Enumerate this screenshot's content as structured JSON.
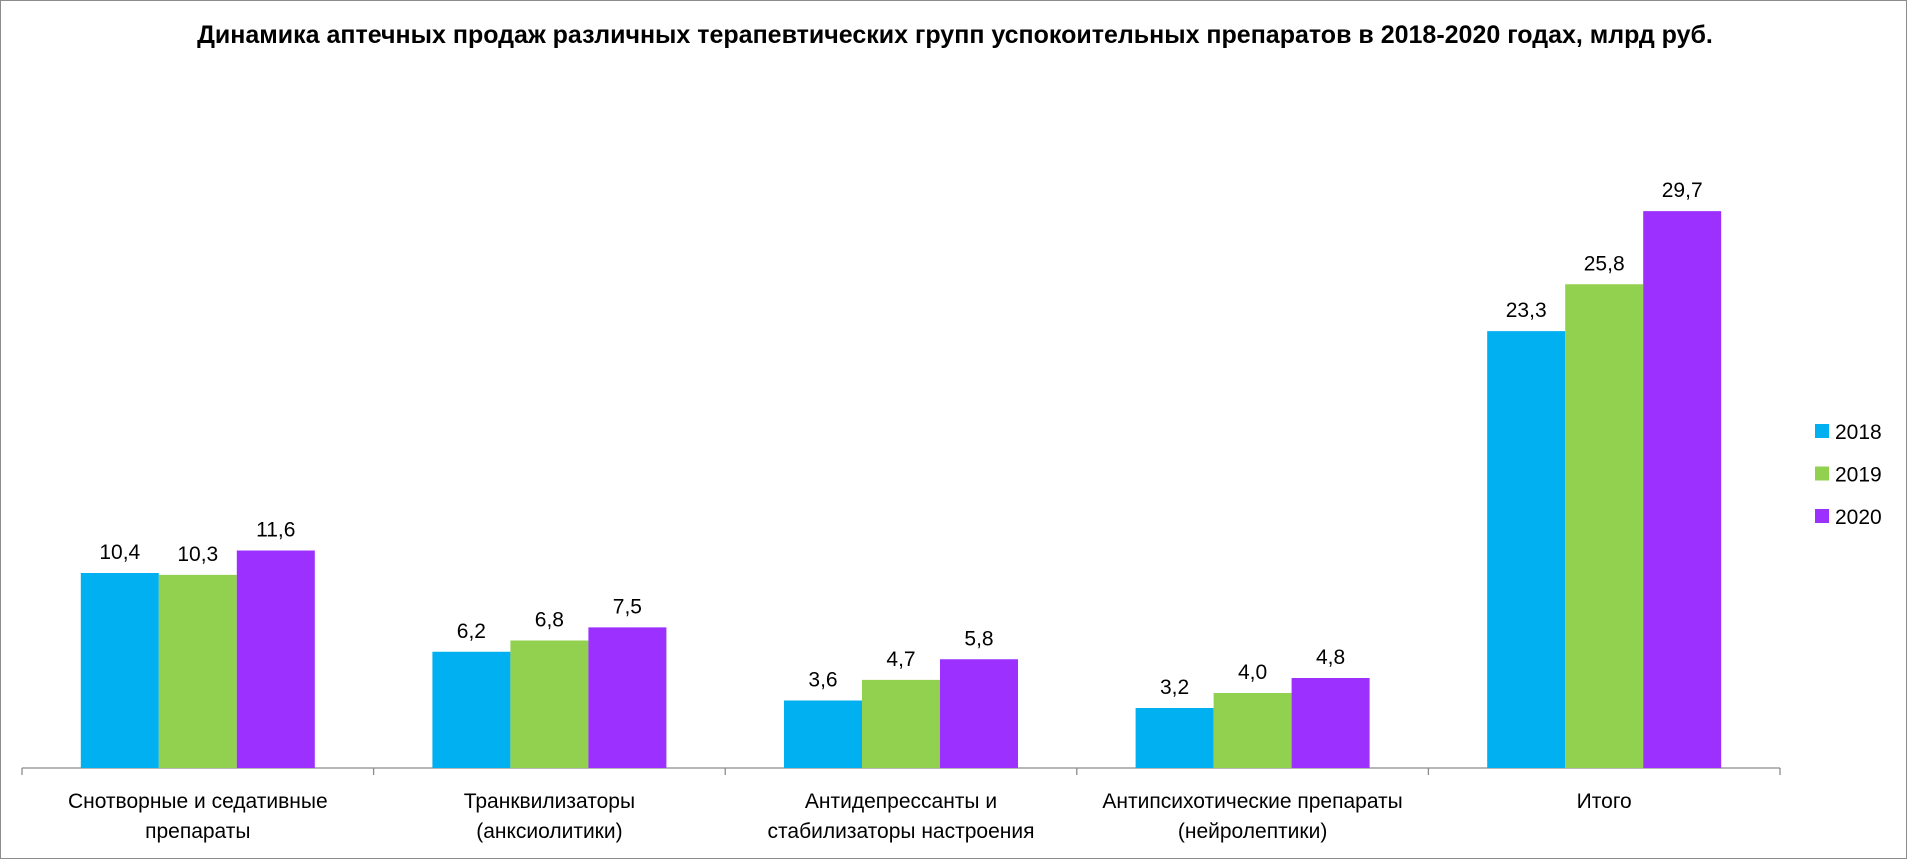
{
  "chart_data": {
    "type": "bar",
    "title": "Динамика аптечных продаж различных терапевтических групп успокоительных препаратов в 2018-2020 годах, млрд руб.",
    "categories": [
      [
        "Снотворные и седативные",
        "препараты"
      ],
      [
        "Транквилизаторы",
        "(анксиолитики)"
      ],
      [
        "Антидепрессанты и",
        "стабилизаторы настроения"
      ],
      [
        "Антипсихотические препараты",
        "(нейролептики)"
      ],
      [
        "Итого"
      ]
    ],
    "series": [
      {
        "name": "2018",
        "color": "#00b0f0",
        "values": [
          10.4,
          6.2,
          3.6,
          3.2,
          23.3
        ],
        "labels": [
          "10,4",
          "6,2",
          "3,6",
          "3,2",
          "23,3"
        ]
      },
      {
        "name": "2019",
        "color": "#92d050",
        "values": [
          10.3,
          6.8,
          4.7,
          4.0,
          25.8
        ],
        "labels": [
          "10,3",
          "6,8",
          "4,7",
          "4,0",
          "25,8"
        ]
      },
      {
        "name": "2020",
        "color": "#9b30ff",
        "values": [
          11.6,
          7.5,
          5.8,
          4.8,
          29.7
        ],
        "labels": [
          "11,6",
          "7,5",
          "5,8",
          "4,8",
          "29,7"
        ]
      }
    ],
    "ylim": [
      0,
      33
    ],
    "grid": false,
    "legend_position": "right"
  }
}
